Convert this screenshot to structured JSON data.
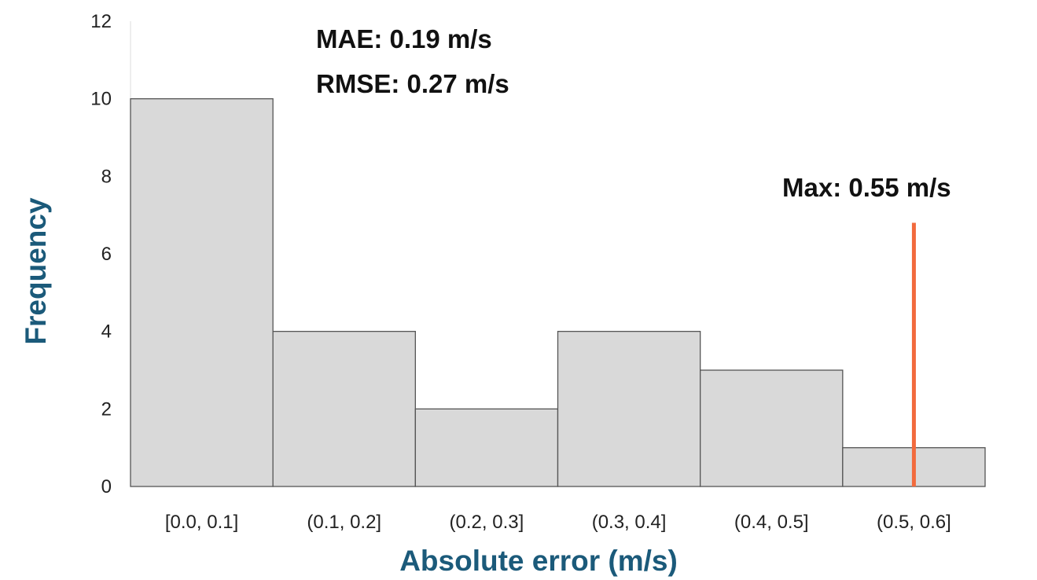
{
  "chart_data": {
    "type": "bar",
    "title": "",
    "xlabel": "Absolute error (m/s)",
    "ylabel": "Frequency",
    "categories": [
      "[0.0, 0.1]",
      "(0.1, 0.2]",
      "(0.2, 0.3]",
      "(0.3, 0.4]",
      "(0.4, 0.5]",
      "(0.5, 0.6]"
    ],
    "values": [
      10,
      4,
      2,
      4,
      3,
      1
    ],
    "ylim": [
      0,
      12
    ],
    "yticks": [
      0,
      2,
      4,
      6,
      8,
      10,
      12
    ],
    "xlim": [
      0.0,
      0.6
    ],
    "grid": false,
    "legend": "none",
    "annotations": {
      "mae": "MAE:   0.19 m/s",
      "rmse": "RMSE: 0.27 m/s",
      "max": "Max:  0.55 m/s"
    },
    "max_line": {
      "x": 0.55,
      "y_top": 6.8
    },
    "colors": {
      "bar_fill": "#d9d9d9",
      "bar_stroke": "#555555",
      "axis_title": "#1b5a7a",
      "max_line": "#f26a3d",
      "tick_text": "#222222",
      "annotation_text": "#111111"
    }
  }
}
